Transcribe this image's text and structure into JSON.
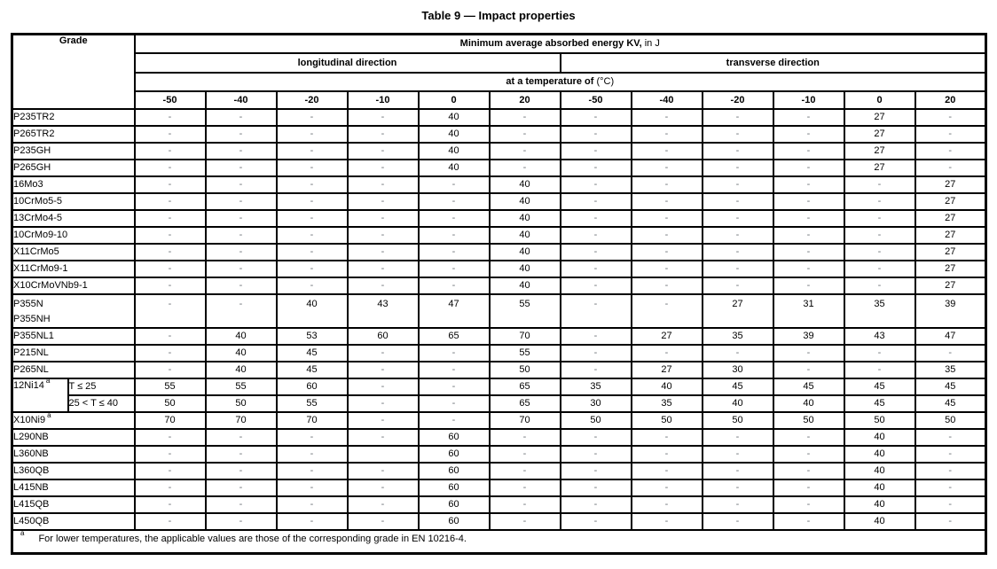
{
  "title": "Table 9 — Impact properties",
  "table": {
    "grade_header": "Grade",
    "kv_header_bold": "Minimum average absorbed energy KV,",
    "kv_header_unit": " in J",
    "direction_long": "longitudinal direction",
    "direction_trans": "transverse direction",
    "temp_header_bold": "at a temperature of ",
    "temp_header_unit": "(°C)",
    "temperatures": [
      "-50",
      "-40",
      "-20",
      "-10",
      "0",
      "20"
    ],
    "rows": [
      {
        "grade": "P235TR2",
        "long": [
          "-",
          "-",
          "-",
          "-",
          "40",
          "-"
        ],
        "trans": [
          "-",
          "-",
          "-",
          "-",
          "27",
          "-"
        ]
      },
      {
        "grade": "P265TR2",
        "long": [
          "-",
          "-",
          "-",
          "-",
          "40",
          "-"
        ],
        "trans": [
          "-",
          "-",
          "-",
          "-",
          "27",
          "-"
        ]
      },
      {
        "grade": "P235GH",
        "long": [
          "-",
          "-",
          "-",
          "-",
          "40",
          "-"
        ],
        "trans": [
          "-",
          "-",
          "-",
          "-",
          "27",
          "-"
        ]
      },
      {
        "grade": "P265GH",
        "long": [
          "-",
          "-",
          "-",
          "-",
          "40",
          "-"
        ],
        "trans": [
          "-",
          "-",
          "-",
          "-",
          "27",
          "-"
        ]
      },
      {
        "grade": "16Mo3",
        "long": [
          "-",
          "-",
          "-",
          "-",
          "-",
          "40"
        ],
        "trans": [
          "-",
          "-",
          "-",
          "-",
          "-",
          "27"
        ]
      },
      {
        "grade": "10CrMo5-5",
        "long": [
          "-",
          "-",
          "-",
          "-",
          "-",
          "40"
        ],
        "trans": [
          "-",
          "-",
          "-",
          "-",
          "-",
          "27"
        ]
      },
      {
        "grade": "13CrMo4-5",
        "long": [
          "-",
          "-",
          "-",
          "-",
          "-",
          "40"
        ],
        "trans": [
          "-",
          "-",
          "-",
          "-",
          "-",
          "27"
        ]
      },
      {
        "grade": "10CrMo9-10",
        "long": [
          "-",
          "-",
          "-",
          "-",
          "-",
          "40"
        ],
        "trans": [
          "-",
          "-",
          "-",
          "-",
          "-",
          "27"
        ]
      },
      {
        "grade": "X11CrMo5",
        "long": [
          "-",
          "-",
          "-",
          "-",
          "-",
          "40"
        ],
        "trans": [
          "-",
          "-",
          "-",
          "-",
          "-",
          "27"
        ]
      },
      {
        "grade": "X11CrMo9-1",
        "long": [
          "-",
          "-",
          "-",
          "-",
          "-",
          "40"
        ],
        "trans": [
          "-",
          "-",
          "-",
          "-",
          "-",
          "27"
        ]
      },
      {
        "grade": "X10CrMoVNb9-1",
        "long": [
          "-",
          "-",
          "-",
          "-",
          "-",
          "40"
        ],
        "trans": [
          "-",
          "-",
          "-",
          "-",
          "-",
          "27"
        ]
      },
      {
        "grade": "P355N",
        "grade2": "P355NH",
        "tall": true,
        "long": [
          "-",
          "-",
          "40",
          "43",
          "47",
          "55"
        ],
        "trans": [
          "-",
          "-",
          "27",
          "31",
          "35",
          "39"
        ]
      },
      {
        "grade": "P355NL1",
        "long": [
          "-",
          "40",
          "53",
          "60",
          "65",
          "70"
        ],
        "trans": [
          "-",
          "27",
          "35",
          "39",
          "43",
          "47"
        ]
      },
      {
        "grade": "P215NL",
        "long": [
          "-",
          "40",
          "45",
          "-",
          "-",
          "55"
        ],
        "trans": [
          "-",
          "-",
          "-",
          "-",
          "-",
          "-"
        ]
      },
      {
        "grade": "P265NL",
        "long": [
          "-",
          "40",
          "45",
          "-",
          "-",
          "50"
        ],
        "trans": [
          "-",
          "27",
          "30",
          "-",
          "-",
          "35"
        ]
      },
      {
        "grade": "12Ni14",
        "sup": "a",
        "condition": "T ≤ 25",
        "long": [
          "55",
          "55",
          "60",
          "-",
          "-",
          "65"
        ],
        "trans": [
          "35",
          "40",
          "45",
          "45",
          "45",
          "45"
        ]
      },
      {
        "cont": true,
        "condition": "25 < T ≤  40",
        "long": [
          "50",
          "50",
          "55",
          "-",
          "-",
          "65"
        ],
        "trans": [
          "30",
          "35",
          "40",
          "40",
          "45",
          "45"
        ]
      },
      {
        "grade": "X10Ni9",
        "sup": "a",
        "long": [
          "70",
          "70",
          "70",
          "-",
          "-",
          "70"
        ],
        "trans": [
          "50",
          "50",
          "50",
          "50",
          "50",
          "50"
        ]
      },
      {
        "grade": "L290NB",
        "long": [
          "-",
          "-",
          "-",
          "-",
          "60",
          "-"
        ],
        "trans": [
          "-",
          "-",
          "-",
          "-",
          "40",
          "-"
        ]
      },
      {
        "grade": "L360NB",
        "long": [
          "-",
          "-",
          "-",
          "",
          "60",
          "-"
        ],
        "trans": [
          "-",
          "-",
          "-",
          "-",
          "40",
          "-"
        ]
      },
      {
        "grade": "L360QB",
        "long": [
          "-",
          "-",
          "-",
          "-",
          "60",
          "-"
        ],
        "trans": [
          "-",
          "-",
          "-",
          "-",
          "40",
          "-"
        ]
      },
      {
        "grade": "L415NB",
        "long": [
          "-",
          "-",
          "-",
          "-",
          "60",
          "-"
        ],
        "trans": [
          "-",
          "-",
          "-",
          "-",
          "40",
          "-"
        ]
      },
      {
        "grade": "L415QB",
        "long": [
          "-",
          "-",
          "-",
          "-",
          "60",
          "-"
        ],
        "trans": [
          "-",
          "-",
          "-",
          "-",
          "40",
          "-"
        ]
      },
      {
        "grade": "L450QB",
        "long": [
          "-",
          "-",
          "-",
          "-",
          "60",
          "-"
        ],
        "trans": [
          "-",
          "-",
          "-",
          "-",
          "40",
          "-"
        ]
      }
    ],
    "footnote_marker": "a",
    "footnote_text": "For lower temperatures, the applicable values are those of the corresponding grade in EN 10216-4."
  }
}
